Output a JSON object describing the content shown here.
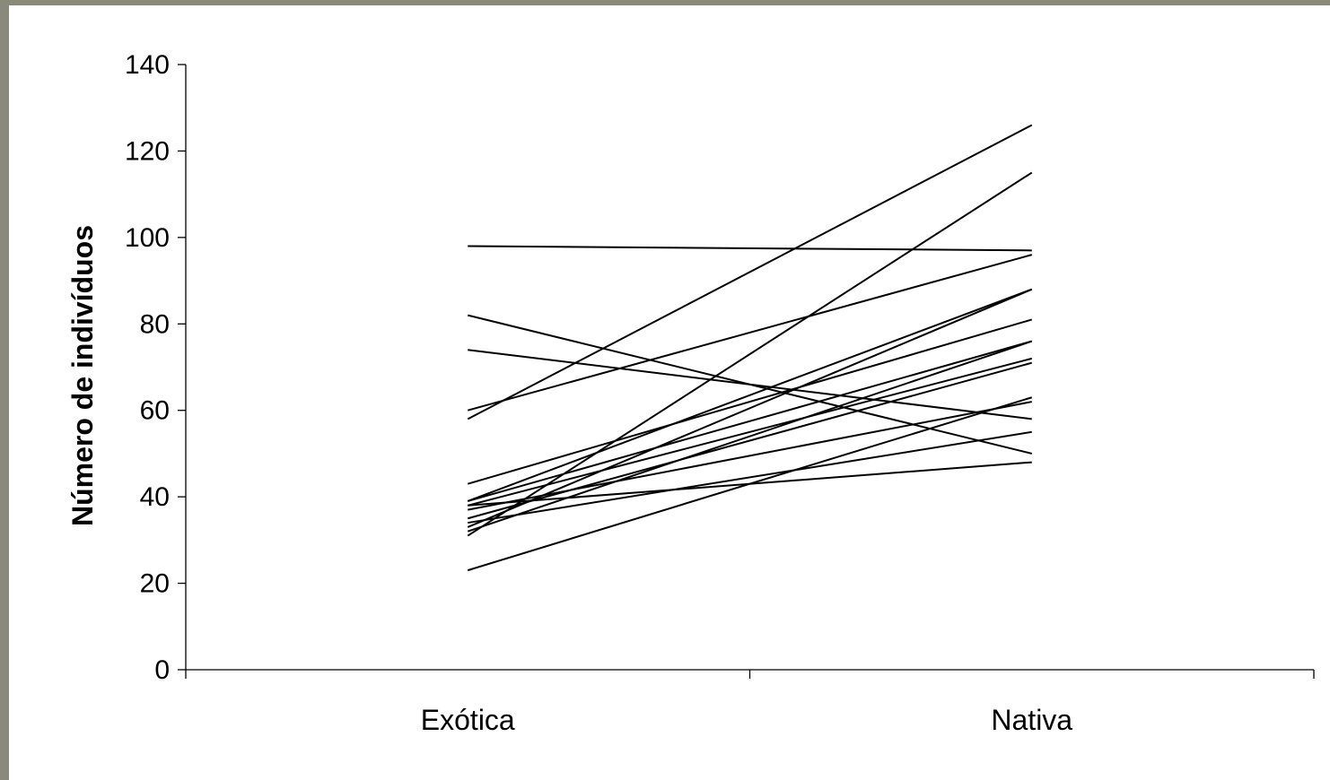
{
  "chart_data": {
    "type": "line",
    "categories": [
      "Exótica",
      "Nativa"
    ],
    "ylabel": "Número de indivíduos",
    "xlabel": "",
    "ylim": [
      0,
      140
    ],
    "yticks": [
      0,
      20,
      40,
      60,
      80,
      100,
      120,
      140
    ],
    "grid": false,
    "legend": "none",
    "line_color": "#000000",
    "series": [
      {
        "values": [
          98,
          97
        ]
      },
      {
        "values": [
          82,
          50
        ]
      },
      {
        "values": [
          74,
          58
        ]
      },
      {
        "values": [
          60,
          96
        ]
      },
      {
        "values": [
          58,
          126
        ]
      },
      {
        "values": [
          43,
          81
        ]
      },
      {
        "values": [
          39,
          88
        ]
      },
      {
        "values": [
          39,
          76
        ]
      },
      {
        "values": [
          38,
          72
        ]
      },
      {
        "values": [
          38,
          48
        ]
      },
      {
        "values": [
          37,
          62
        ]
      },
      {
        "values": [
          35,
          71
        ]
      },
      {
        "values": [
          34,
          55
        ]
      },
      {
        "values": [
          33,
          88
        ]
      },
      {
        "values": [
          32,
          76
        ]
      },
      {
        "values": [
          31,
          115
        ]
      },
      {
        "values": [
          23,
          63
        ]
      }
    ]
  }
}
